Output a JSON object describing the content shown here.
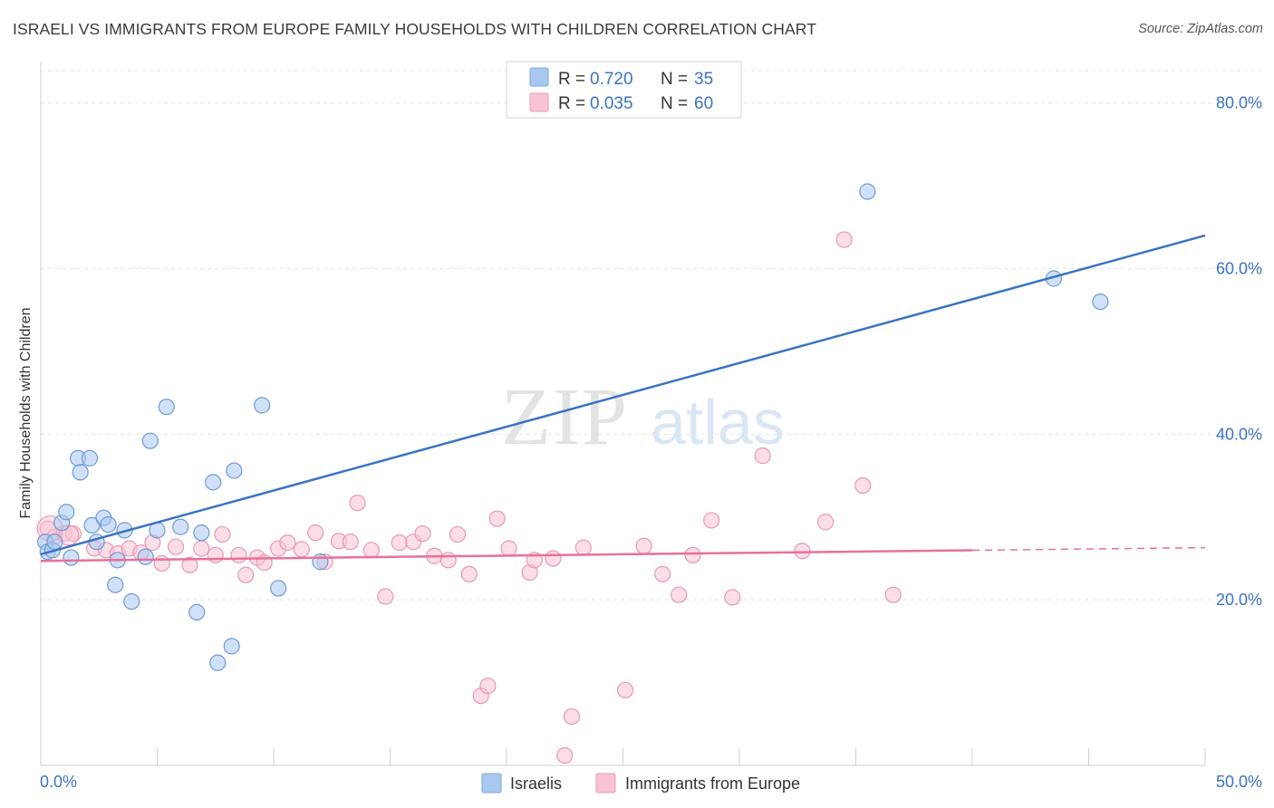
{
  "title": "ISRAELI VS IMMIGRANTS FROM EUROPE FAMILY HOUSEHOLDS WITH CHILDREN CORRELATION CHART",
  "source": "Source: ZipAtlas.com",
  "watermark": {
    "zip": "ZIP",
    "atlas": "atlas"
  },
  "colors": {
    "blue": "#3b73c4",
    "blue_fill": "#a9c8f0",
    "pink": "#e8709a",
    "pink_fill": "#f7b9cc"
  },
  "legend": {
    "rows": [
      {
        "r_label": "R = ",
        "r_value": "0.720",
        "n_label": "N = ",
        "n_value": "35"
      },
      {
        "r_label": "R = ",
        "r_value": "0.035",
        "n_label": "N = ",
        "n_value": "60"
      }
    ]
  },
  "chart_data": {
    "type": "scatter",
    "ylabel": "Family Households with Children",
    "xlim": [
      0,
      50
    ],
    "ylim": [
      0,
      85
    ],
    "x_tick_labels": [
      "0.0%",
      "50.0%"
    ],
    "y_tick_labels": [
      "20.0%",
      "40.0%",
      "60.0%",
      "80.0%"
    ],
    "y_ticks": [
      20,
      40,
      60,
      80
    ],
    "grid": true,
    "series": [
      {
        "name": "Israelis",
        "r": 0.72,
        "n": 35,
        "trend": {
          "x": [
            0,
            50
          ],
          "y": [
            25.5,
            64.0
          ],
          "dashed_from": null
        },
        "points": [
          [
            0.2,
            27.0
          ],
          [
            0.3,
            25.8
          ],
          [
            0.5,
            26.0
          ],
          [
            0.6,
            27.0
          ],
          [
            0.9,
            29.3
          ],
          [
            1.1,
            30.6
          ],
          [
            1.3,
            25.1
          ],
          [
            1.6,
            37.1
          ],
          [
            1.7,
            35.4
          ],
          [
            2.1,
            37.1
          ],
          [
            2.2,
            29.0
          ],
          [
            2.4,
            27.0
          ],
          [
            2.7,
            29.9
          ],
          [
            2.9,
            29.1
          ],
          [
            3.2,
            21.8
          ],
          [
            3.3,
            24.8
          ],
          [
            3.6,
            28.4
          ],
          [
            3.9,
            19.8
          ],
          [
            4.5,
            25.2
          ],
          [
            4.7,
            39.2
          ],
          [
            5.0,
            28.4
          ],
          [
            5.4,
            43.3
          ],
          [
            6.0,
            28.8
          ],
          [
            6.7,
            18.5
          ],
          [
            6.9,
            28.1
          ],
          [
            7.4,
            34.2
          ],
          [
            7.6,
            12.4
          ],
          [
            8.2,
            14.4
          ],
          [
            8.3,
            35.6
          ],
          [
            9.5,
            43.5
          ],
          [
            10.2,
            21.4
          ],
          [
            12.0,
            24.6
          ],
          [
            35.5,
            69.3
          ],
          [
            43.5,
            58.8
          ],
          [
            45.5,
            56.0
          ]
        ]
      },
      {
        "name": "Immigrants from Europe",
        "r": 0.035,
        "n": 60,
        "trend": {
          "x": [
            0,
            50
          ],
          "y": [
            24.7,
            26.3
          ],
          "dashed_from": 40
        },
        "points": [
          [
            0.3,
            28.6
          ],
          [
            0.6,
            27.6
          ],
          [
            1.0,
            28.0
          ],
          [
            1.4,
            28.0
          ],
          [
            2.3,
            26.2
          ],
          [
            2.8,
            26.0
          ],
          [
            3.3,
            25.6
          ],
          [
            3.8,
            26.2
          ],
          [
            4.3,
            25.7
          ],
          [
            4.8,
            26.9
          ],
          [
            5.2,
            24.4
          ],
          [
            5.8,
            26.4
          ],
          [
            6.4,
            24.2
          ],
          [
            6.9,
            26.2
          ],
          [
            7.5,
            25.4
          ],
          [
            7.8,
            27.9
          ],
          [
            8.5,
            25.4
          ],
          [
            8.8,
            23.0
          ],
          [
            9.3,
            25.1
          ],
          [
            9.6,
            24.5
          ],
          [
            10.2,
            26.2
          ],
          [
            10.6,
            26.9
          ],
          [
            11.2,
            26.1
          ],
          [
            11.8,
            28.1
          ],
          [
            12.2,
            24.6
          ],
          [
            12.8,
            27.1
          ],
          [
            13.3,
            27.0
          ],
          [
            13.6,
            31.7
          ],
          [
            14.2,
            26.0
          ],
          [
            14.8,
            20.4
          ],
          [
            15.4,
            26.9
          ],
          [
            16.0,
            27.0
          ],
          [
            16.4,
            28.0
          ],
          [
            16.9,
            25.3
          ],
          [
            17.5,
            24.8
          ],
          [
            17.9,
            27.9
          ],
          [
            18.4,
            23.1
          ],
          [
            18.9,
            8.4
          ],
          [
            19.2,
            9.6
          ],
          [
            19.6,
            29.8
          ],
          [
            20.1,
            26.2
          ],
          [
            21.0,
            23.3
          ],
          [
            21.2,
            24.8
          ],
          [
            22.0,
            25.0
          ],
          [
            22.5,
            1.2
          ],
          [
            22.8,
            5.9
          ],
          [
            23.3,
            26.3
          ],
          [
            25.1,
            9.1
          ],
          [
            25.9,
            26.5
          ],
          [
            26.7,
            23.1
          ],
          [
            27.4,
            20.6
          ],
          [
            28.0,
            25.4
          ],
          [
            28.8,
            29.6
          ],
          [
            29.7,
            20.3
          ],
          [
            31.0,
            37.4
          ],
          [
            32.7,
            25.9
          ],
          [
            33.7,
            29.4
          ],
          [
            34.5,
            63.5
          ],
          [
            35.3,
            33.8
          ],
          [
            36.6,
            20.6
          ]
        ]
      }
    ]
  }
}
